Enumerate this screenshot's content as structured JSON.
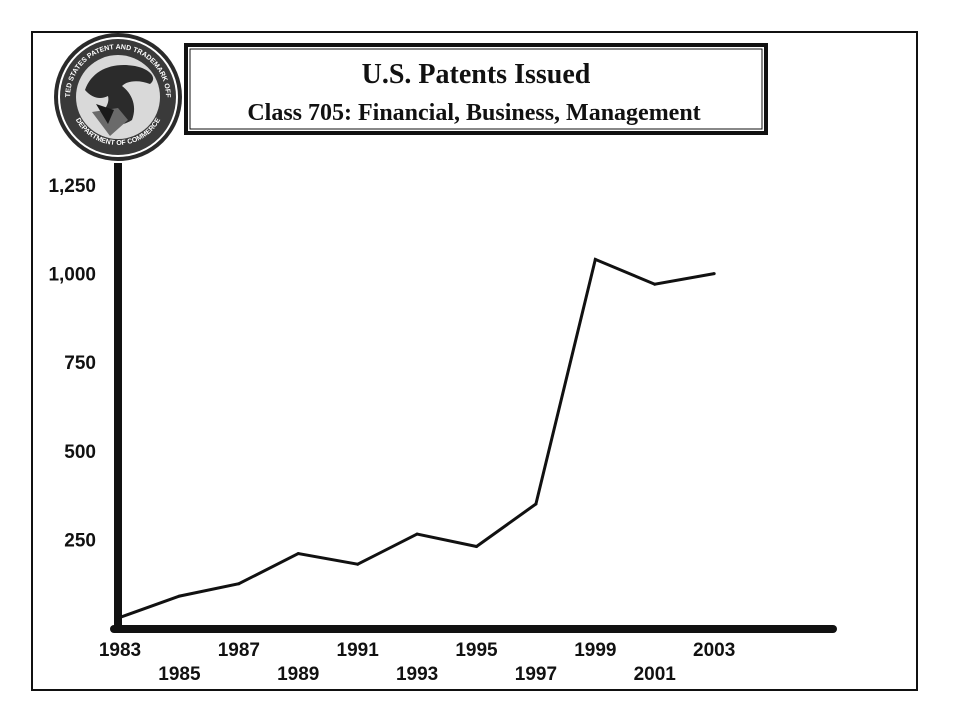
{
  "chart_data": {
    "type": "line",
    "title": "U.S. Patents Issued",
    "subtitle": "Class 705: Financial, Business, Management",
    "xlabel": "",
    "ylabel": "",
    "x": [
      1983,
      1985,
      1987,
      1989,
      1991,
      1993,
      1995,
      1997,
      1999,
      2001,
      2003
    ],
    "series": [
      {
        "values": [
          30,
          90,
          125,
          210,
          180,
          265,
          230,
          350,
          1040,
          970,
          1000
        ]
      }
    ],
    "xlim": [
      1983,
      2007
    ],
    "ylim": [
      0,
      1250
    ],
    "x_ticks_top_row": [
      "1983",
      "1987",
      "1991",
      "1995",
      "1999",
      "2003"
    ],
    "x_ticks_bottom_row": [
      "1985",
      "1989",
      "1993",
      "1997",
      "2001"
    ],
    "y_ticks": [
      {
        "value": 250,
        "label": "250"
      },
      {
        "value": 500,
        "label": "500"
      },
      {
        "value": 750,
        "label": "750"
      },
      {
        "value": 1000,
        "label": "1,000"
      },
      {
        "value": 1250,
        "label": "1,250"
      }
    ],
    "grid": false,
    "legend": "none",
    "line_color": "#111111",
    "axis_color": "#111111"
  },
  "logo": {
    "name": "uspto-seal-icon",
    "text_top": "UNITED STATES PATENT AND TRADEMARK OFFICE",
    "text_bottom": "DEPARTMENT OF COMMERCE"
  }
}
